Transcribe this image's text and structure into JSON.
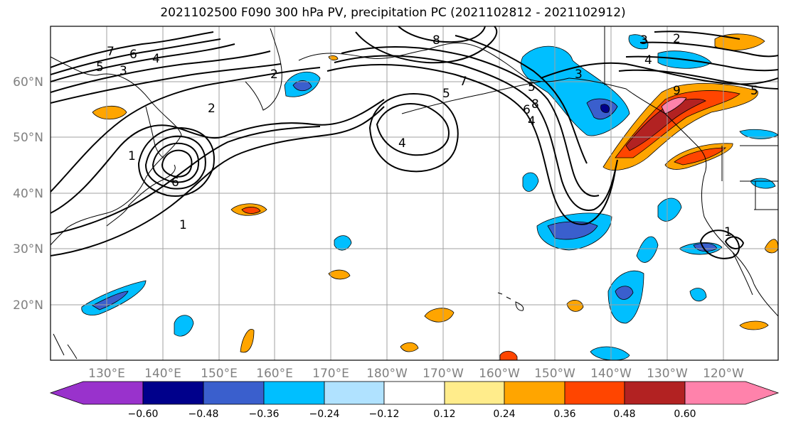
{
  "title": "2021102500 F090 300 hPa PV, precipitation PC (2021102812 - 2021102912)",
  "longitude_labels": [
    "130°E",
    "140°E",
    "150°E",
    "160°E",
    "170°E",
    "180°W",
    "170°W",
    "160°W",
    "150°W",
    "140°W",
    "130°W",
    "120°W"
  ],
  "latitude_labels": [
    "60°N",
    "50°N",
    "40°N",
    "30°N",
    "20°N"
  ],
  "contour_labels": [
    "7",
    "6",
    "4",
    "5",
    "3",
    "2",
    "1",
    "8",
    "4",
    "5",
    "7",
    "8",
    "6",
    "4",
    "5",
    "2",
    "3",
    "4",
    "9",
    "5",
    "1",
    "1",
    "2",
    "6",
    "3"
  ],
  "colorbar": {
    "tick_labels": [
      "−0.60",
      "−0.48",
      "−0.36",
      "−0.24",
      "−0.12",
      "0.12",
      "0.24",
      "0.36",
      "0.48",
      "0.60"
    ],
    "colors": [
      "#9932cc",
      "#00008b",
      "#3a5fcd",
      "#00bfff",
      "#b0e2ff",
      "#ffffff",
      "#ffec8b",
      "#ffa500",
      "#ff4500",
      "#b22222",
      "#ff82ab"
    ]
  }
}
